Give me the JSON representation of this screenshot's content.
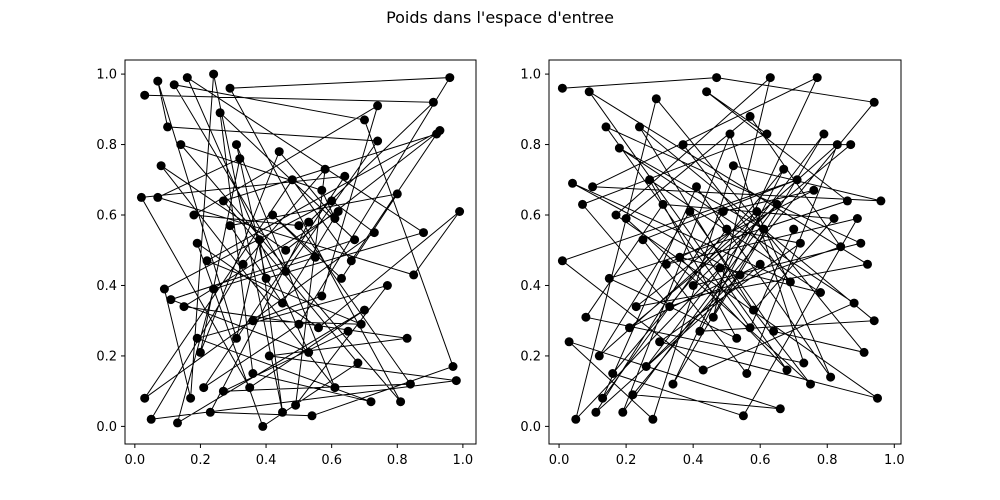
{
  "figure": {
    "title": "Poids dans l'espace d'entree"
  },
  "chart_data": [
    {
      "type": "scatter",
      "title": "",
      "xlabel": "",
      "ylabel": "",
      "xlim": [
        -0.03,
        1.04
      ],
      "ylim": [
        -0.05,
        1.04
      ],
      "xticks": [
        0.0,
        0.2,
        0.4,
        0.6,
        0.8,
        1.0
      ],
      "yticks": [
        0.0,
        0.2,
        0.4,
        0.6,
        0.8,
        1.0
      ],
      "xtick_labels": [
        "0.0",
        "0.2",
        "0.4",
        "0.6",
        "0.8",
        "1.0"
      ],
      "ytick_labels": [
        "0.0",
        "0.2",
        "0.4",
        "0.6",
        "0.8",
        "1.0"
      ],
      "connected": true,
      "marker_color": "#000000",
      "line_color": "#000000",
      "points": [
        [
          0.03,
          0.94
        ],
        [
          0.91,
          0.92
        ],
        [
          0.53,
          0.58
        ],
        [
          0.23,
          0.04
        ],
        [
          0.54,
          0.03
        ],
        [
          0.97,
          0.17
        ],
        [
          0.7,
          0.87
        ],
        [
          0.12,
          0.97
        ],
        [
          0.46,
          0.44
        ],
        [
          0.74,
          0.81
        ],
        [
          0.1,
          0.85
        ],
        [
          0.07,
          0.98
        ],
        [
          0.31,
          0.25
        ],
        [
          0.38,
          0.53
        ],
        [
          0.45,
          0.04
        ],
        [
          0.24,
          1.0
        ],
        [
          0.17,
          0.08
        ],
        [
          0.09,
          0.39
        ],
        [
          0.6,
          0.64
        ],
        [
          0.73,
          0.55
        ],
        [
          0.03,
          0.08
        ],
        [
          0.48,
          0.7
        ],
        [
          0.66,
          0.47
        ],
        [
          0.92,
          0.83
        ],
        [
          0.27,
          0.64
        ],
        [
          0.68,
          0.18
        ],
        [
          0.39,
          0.0
        ],
        [
          0.19,
          0.52
        ],
        [
          0.56,
          0.28
        ],
        [
          0.99,
          0.61
        ],
        [
          0.85,
          0.43
        ],
        [
          0.07,
          0.65
        ],
        [
          0.32,
          0.76
        ],
        [
          0.2,
          0.21
        ],
        [
          0.44,
          0.78
        ],
        [
          0.61,
          0.59
        ],
        [
          0.57,
          0.67
        ],
        [
          0.14,
          0.8
        ],
        [
          0.81,
          0.07
        ],
        [
          0.29,
          0.96
        ],
        [
          0.96,
          0.99
        ],
        [
          0.5,
          0.29
        ],
        [
          0.21,
          0.11
        ],
        [
          0.64,
          0.71
        ],
        [
          0.02,
          0.65
        ],
        [
          0.35,
          0.11
        ],
        [
          0.7,
          0.33
        ],
        [
          0.13,
          0.01
        ],
        [
          0.24,
          0.39
        ],
        [
          0.55,
          0.48
        ],
        [
          0.42,
          0.6
        ],
        [
          0.63,
          0.42
        ],
        [
          0.8,
          0.66
        ],
        [
          0.29,
          0.57
        ],
        [
          0.45,
          0.35
        ],
        [
          0.62,
          0.61
        ],
        [
          0.15,
          0.34
        ],
        [
          0.83,
          0.25
        ],
        [
          0.41,
          0.2
        ],
        [
          0.98,
          0.13
        ],
        [
          0.05,
          0.02
        ],
        [
          0.33,
          0.46
        ],
        [
          0.58,
          0.73
        ],
        [
          0.49,
          0.06
        ],
        [
          0.77,
          0.4
        ],
        [
          0.19,
          0.25
        ],
        [
          0.72,
          0.07
        ],
        [
          0.36,
          0.15
        ],
        [
          0.26,
          0.89
        ],
        [
          0.67,
          0.53
        ],
        [
          0.11,
          0.36
        ],
        [
          0.53,
          0.21
        ],
        [
          0.16,
          0.99
        ],
        [
          0.88,
          0.55
        ],
        [
          0.4,
          0.42
        ],
        [
          0.31,
          0.8
        ],
        [
          0.61,
          0.11
        ],
        [
          0.08,
          0.74
        ],
        [
          0.46,
          0.5
        ],
        [
          0.93,
          0.84
        ],
        [
          0.22,
          0.47
        ],
        [
          0.69,
          0.29
        ],
        [
          0.36,
          0.3
        ],
        [
          0.57,
          0.37
        ],
        [
          0.74,
          0.91
        ],
        [
          0.18,
          0.6
        ],
        [
          0.5,
          0.57
        ],
        [
          0.84,
          0.12
        ],
        [
          0.27,
          0.1
        ],
        [
          0.65,
          0.27
        ]
      ]
    },
    {
      "type": "scatter",
      "title": "",
      "xlabel": "",
      "ylabel": "",
      "xlim": [
        -0.03,
        1.02
      ],
      "ylim": [
        -0.05,
        1.04
      ],
      "xticks": [
        0.0,
        0.2,
        0.4,
        0.6,
        0.8,
        1.0
      ],
      "yticks": [
        0.0,
        0.2,
        0.4,
        0.6,
        0.8,
        1.0
      ],
      "xtick_labels": [
        "0.0",
        "0.2",
        "0.4",
        "0.6",
        "0.8",
        "1.0"
      ],
      "ytick_labels": [
        "0.0",
        "0.2",
        "0.4",
        "0.6",
        "0.8",
        "1.0"
      ],
      "connected": true,
      "marker_color": "#000000",
      "line_color": "#000000",
      "points": [
        [
          0.01,
          0.96
        ],
        [
          0.47,
          0.99
        ],
        [
          0.94,
          0.92
        ],
        [
          0.22,
          0.09
        ],
        [
          0.66,
          0.05
        ],
        [
          0.03,
          0.24
        ],
        [
          0.28,
          0.02
        ],
        [
          0.52,
          0.74
        ],
        [
          0.96,
          0.64
        ],
        [
          0.1,
          0.68
        ],
        [
          0.77,
          0.99
        ],
        [
          0.34,
          0.12
        ],
        [
          0.61,
          0.56
        ],
        [
          0.18,
          0.79
        ],
        [
          0.88,
          0.35
        ],
        [
          0.43,
          0.16
        ],
        [
          0.01,
          0.47
        ],
        [
          0.71,
          0.7
        ],
        [
          0.25,
          0.53
        ],
        [
          0.56,
          0.15
        ],
        [
          0.83,
          0.8
        ],
        [
          0.12,
          0.2
        ],
        [
          0.39,
          0.61
        ],
        [
          0.64,
          0.27
        ],
        [
          0.91,
          0.21
        ],
        [
          0.29,
          0.93
        ],
        [
          0.05,
          0.02
        ],
        [
          0.48,
          0.45
        ],
        [
          0.75,
          0.12
        ],
        [
          0.2,
          0.59
        ],
        [
          0.57,
          0.88
        ],
        [
          0.84,
          0.51
        ],
        [
          0.33,
          0.34
        ],
        [
          0.07,
          0.63
        ],
        [
          0.62,
          0.83
        ],
        [
          0.44,
          0.95
        ],
        [
          0.86,
          0.64
        ],
        [
          0.15,
          0.42
        ],
        [
          0.53,
          0.25
        ],
        [
          0.27,
          0.7
        ],
        [
          0.78,
          0.38
        ],
        [
          0.36,
          0.48
        ],
        [
          0.68,
          0.16
        ],
        [
          0.09,
          0.95
        ],
        [
          0.92,
          0.46
        ],
        [
          0.23,
          0.34
        ],
        [
          0.59,
          0.61
        ],
        [
          0.81,
          0.14
        ],
        [
          0.41,
          0.68
        ],
        [
          0.13,
          0.08
        ],
        [
          0.5,
          0.56
        ],
        [
          0.72,
          0.52
        ],
        [
          0.3,
          0.24
        ],
        [
          0.95,
          0.08
        ],
        [
          0.17,
          0.6
        ],
        [
          0.63,
          0.99
        ],
        [
          0.46,
          0.31
        ],
        [
          0.79,
          0.83
        ],
        [
          0.26,
          0.17
        ],
        [
          0.54,
          0.43
        ],
        [
          0.04,
          0.69
        ],
        [
          0.69,
          0.41
        ],
        [
          0.37,
          0.8
        ],
        [
          0.87,
          0.8
        ],
        [
          0.21,
          0.28
        ],
        [
          0.6,
          0.46
        ],
        [
          0.11,
          0.04
        ],
        [
          0.49,
          0.61
        ],
        [
          0.76,
          0.67
        ],
        [
          0.32,
          0.46
        ],
        [
          0.89,
          0.59
        ],
        [
          0.55,
          0.03
        ],
        [
          0.16,
          0.15
        ],
        [
          0.67,
          0.73
        ],
        [
          0.42,
          0.27
        ],
        [
          0.94,
          0.3
        ],
        [
          0.24,
          0.85
        ],
        [
          0.58,
          0.33
        ],
        [
          0.82,
          0.59
        ],
        [
          0.31,
          0.63
        ],
        [
          0.08,
          0.31
        ],
        [
          0.73,
          0.18
        ],
        [
          0.51,
          0.83
        ],
        [
          0.19,
          0.04
        ],
        [
          0.65,
          0.63
        ],
        [
          0.4,
          0.4
        ],
        [
          0.9,
          0.52
        ],
        [
          0.14,
          0.85
        ],
        [
          0.57,
          0.28
        ],
        [
          0.7,
          0.56
        ]
      ]
    }
  ]
}
